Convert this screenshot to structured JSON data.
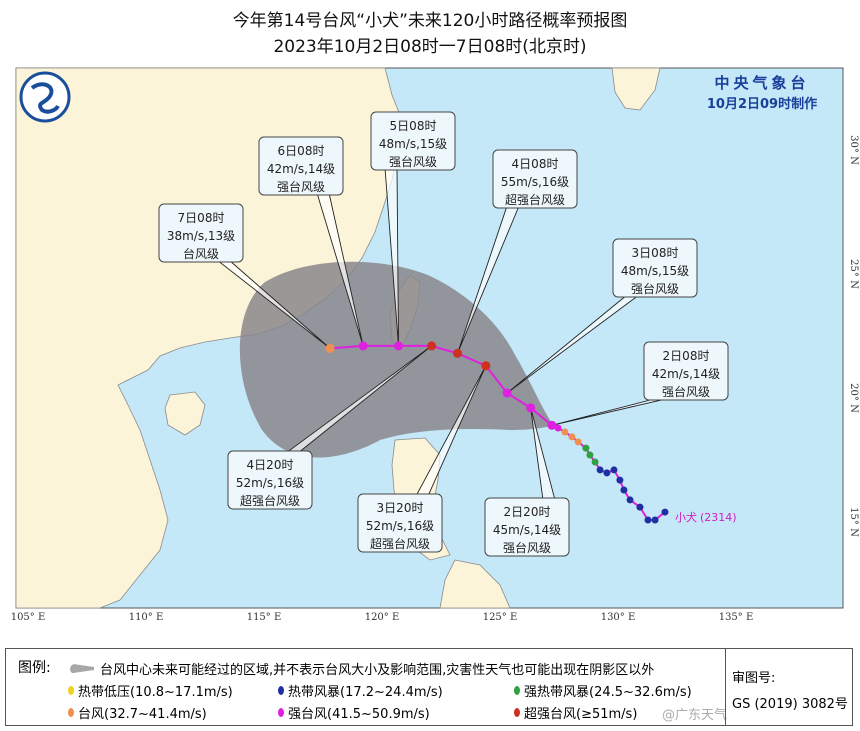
{
  "title": {
    "line1": "今年第14号台风“小犬”未来120小时路径概率预报图",
    "line2": "2023年10月2日08时一7日08时(北京时)"
  },
  "issuer": {
    "name": "中央气象台",
    "time": "10月2日09时制作"
  },
  "axes": {
    "lon_labels": [
      {
        "lon": 105,
        "text": "105° E"
      },
      {
        "lon": 110,
        "text": "110° E"
      },
      {
        "lon": 115,
        "text": "115° E"
      },
      {
        "lon": 120,
        "text": "120° E"
      },
      {
        "lon": 125,
        "text": "125° E"
      },
      {
        "lon": 130,
        "text": "130° E"
      },
      {
        "lon": 135,
        "text": "135° E"
      }
    ],
    "lat_labels": [
      {
        "lat": 30,
        "text": "30° N"
      },
      {
        "lat": 25,
        "text": "25° N"
      },
      {
        "lat": 20,
        "text": "20° N"
      },
      {
        "lat": 15,
        "text": "15° N"
      }
    ]
  },
  "storm": {
    "name": "小犬",
    "code": "(2314)",
    "color": "#d020c0"
  },
  "intensity_colors": {
    "TD": "#f0d020",
    "TS": "#2030a0",
    "STS": "#30a040",
    "TY": "#f09050",
    "STY": "#e020e0",
    "SuperTY": "#d03020"
  },
  "forecast": [
    {
      "time": "2日08时",
      "wind": "42m/s,14级",
      "level": "强台风级",
      "cat": "STY",
      "lon": 127.2,
      "lat": 18.9
    },
    {
      "time": "2日20时",
      "wind": "45m/s,14级",
      "level": "强台风级",
      "cat": "STY",
      "lon": 126.3,
      "lat": 19.6
    },
    {
      "time": "3日08时",
      "wind": "48m/s,15级",
      "level": "强台风级",
      "cat": "STY",
      "lon": 125.3,
      "lat": 20.2
    },
    {
      "time": "3日20时",
      "wind": "52m/s,16级",
      "level": "超强台风级",
      "cat": "SuperTY",
      "lon": 124.4,
      "lat": 21.3
    },
    {
      "time": "4日08时",
      "wind": "55m/s,16级",
      "level": "超强台风级",
      "cat": "SuperTY",
      "lon": 123.2,
      "lat": 21.8
    },
    {
      "time": "4日20时",
      "wind": "52m/s,16级",
      "level": "超强台风级",
      "cat": "SuperTY",
      "lon": 122.1,
      "lat": 22.1
    },
    {
      "time": "5日08时",
      "wind": "48m/s,15级",
      "level": "强台风级",
      "cat": "STY",
      "lon": 120.7,
      "lat": 22.1
    },
    {
      "time": "6日08时",
      "wind": "42m/s,14级",
      "level": "强台风级",
      "cat": "STY",
      "lon": 119.2,
      "lat": 22.1
    },
    {
      "time": "7日08时",
      "wind": "38m/s,13级",
      "level": "台风级",
      "cat": "TY",
      "lon": 117.8,
      "lat": 22.0
    }
  ],
  "past_track": [
    {
      "lon": 131.99,
      "lat": 15.4,
      "cat": "TS"
    },
    {
      "lon": 131.57,
      "lat": 15.08,
      "cat": "TS"
    },
    {
      "lon": 131.27,
      "lat": 15.08,
      "cat": "TS"
    },
    {
      "lon": 130.93,
      "lat": 15.6,
      "cat": "TS"
    },
    {
      "lon": 130.51,
      "lat": 15.89,
      "cat": "TS"
    },
    {
      "lon": 130.25,
      "lat": 16.29,
      "cat": "TS"
    },
    {
      "lon": 130.08,
      "lat": 16.69,
      "cat": "TS"
    },
    {
      "lon": 129.83,
      "lat": 17.1,
      "cat": "TS"
    },
    {
      "lon": 129.53,
      "lat": 16.98,
      "cat": "TS"
    },
    {
      "lon": 129.24,
      "lat": 17.1,
      "cat": "TS"
    },
    {
      "lon": 129.03,
      "lat": 17.42,
      "cat": "STS"
    },
    {
      "lon": 128.81,
      "lat": 17.7,
      "cat": "STS"
    },
    {
      "lon": 128.64,
      "lat": 17.98,
      "cat": "STS"
    },
    {
      "lon": 128.31,
      "lat": 18.23,
      "cat": "TY"
    },
    {
      "lon": 128.05,
      "lat": 18.43,
      "cat": "TY"
    },
    {
      "lon": 127.75,
      "lat": 18.63,
      "cat": "TY"
    },
    {
      "lon": 127.46,
      "lat": 18.79,
      "cat": "STY"
    }
  ],
  "legend": {
    "heading": "图例:",
    "cone_text": "台风中心未来可能经过的区域,并不表示台风大小及影响范围,灾害性天气也可能出现在阴影区以外",
    "items": [
      {
        "label": "热带低压(10.8~17.1m/s)",
        "color": "#f0d020"
      },
      {
        "label": "热带风暴(17.2~24.4m/s)",
        "color": "#2030a0"
      },
      {
        "label": "强热带风暴(24.5~32.6m/s)",
        "color": "#30a040"
      },
      {
        "label": "台风(32.7~41.4m/s)",
        "color": "#f09050"
      },
      {
        "label": "强台风(41.5~50.9m/s)",
        "color": "#e020e0"
      },
      {
        "label": "超强台风(≥51m/s)",
        "color": "#d03020"
      }
    ],
    "review_label": "审图号:",
    "review_number": "GS (2019) 3082号"
  },
  "watermark": "@广东天气"
}
